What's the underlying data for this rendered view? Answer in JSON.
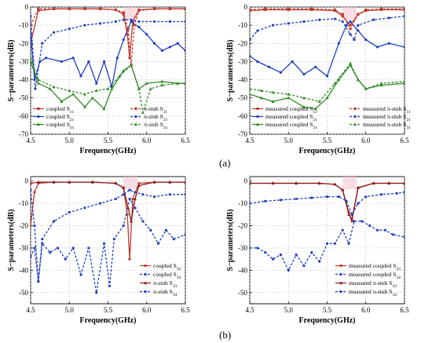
{
  "figure": {
    "label_a": "(a)",
    "label_b": "(b)"
  },
  "chart_data": [
    {
      "type": "line",
      "xlabel": "Frequency(GHz)",
      "ylabel": "S−parameters(dB)",
      "xlim": [
        4.5,
        6.5
      ],
      "ylim": [
        -70,
        0
      ],
      "xticks": [
        "4.5",
        "5.0",
        "5.5",
        "6.0",
        "6.5"
      ],
      "yticks": [
        "0",
        "-10",
        "-20",
        "-30",
        "-40",
        "-50",
        "-60",
        "-70"
      ],
      "legend_left": [
        "coupled S11",
        "coupled S21",
        "coupled S31"
      ],
      "legend_right": [
        "π-stub S11",
        "π-stub S21",
        "π-stub S31"
      ],
      "series": [
        {
          "name": "coupled S11",
          "color": "#c0392b",
          "dash": false,
          "marker": "square",
          "x": [
            4.5,
            4.6,
            4.8,
            5.0,
            5.2,
            5.4,
            5.6,
            5.7,
            5.75,
            5.78,
            5.82,
            5.9,
            6.1,
            6.3,
            6.5
          ],
          "y": [
            -20,
            -2,
            -1,
            -1,
            -1,
            -1,
            -1.5,
            -4,
            -15,
            -28,
            -8,
            -1.5,
            -1,
            -1,
            -1
          ]
        },
        {
          "name": "coupled S21",
          "color": "#1f3fbf",
          "dash": false,
          "marker": "circle",
          "x": [
            4.5,
            4.55,
            4.62,
            4.7,
            4.9,
            5.05,
            5.15,
            5.25,
            5.35,
            5.45,
            5.55,
            5.62,
            5.7,
            5.8,
            5.9,
            6.0,
            6.1,
            6.2,
            6.3,
            6.4,
            6.5
          ],
          "y": [
            -15,
            -40,
            -30,
            -28,
            -30,
            -28,
            -38,
            -30,
            -42,
            -30,
            -44,
            -28,
            -18,
            -8,
            -11,
            -15,
            -20,
            -24,
            -22,
            -20,
            -24
          ]
        },
        {
          "name": "coupled S31",
          "color": "#2e8b22",
          "dash": false,
          "marker": "triangle",
          "x": [
            4.5,
            4.6,
            4.75,
            4.9,
            5.05,
            5.2,
            5.3,
            5.45,
            5.55,
            5.7,
            5.8,
            5.9,
            6.0,
            6.2,
            6.4,
            6.5
          ],
          "y": [
            -30,
            -42,
            -45,
            -52,
            -48,
            -55,
            -50,
            -56,
            -45,
            -35,
            -32,
            -45,
            -42,
            -41,
            -42,
            -42
          ]
        },
        {
          "name": "π-stub S11",
          "color": "#c0392b",
          "dash": true,
          "marker": "square",
          "x": [
            4.5,
            4.6,
            4.8,
            5.0,
            5.2,
            5.4,
            5.6,
            5.7,
            5.76,
            5.8,
            5.84,
            5.9,
            6.1,
            6.3,
            6.5
          ],
          "y": [
            -10,
            -1,
            -1,
            -1,
            -1,
            -1,
            -1.5,
            -3,
            -12,
            -32,
            -10,
            -2,
            -1,
            -1,
            -1
          ]
        },
        {
          "name": "π-stub S21",
          "color": "#1f3fbf",
          "dash": true,
          "marker": "circle",
          "x": [
            4.5,
            4.56,
            4.65,
            4.8,
            5.0,
            5.2,
            5.4,
            5.6,
            5.7,
            5.8,
            5.9,
            6.1,
            6.3,
            6.5
          ],
          "y": [
            -5,
            -45,
            -20,
            -14,
            -12,
            -10,
            -9,
            -8,
            -7,
            -7,
            -8,
            -8,
            -8,
            -8
          ]
        },
        {
          "name": "π-stub S31",
          "color": "#2e8b22",
          "dash": true,
          "marker": "triangle",
          "x": [
            4.5,
            4.6,
            4.8,
            5.0,
            5.2,
            5.35,
            5.5,
            5.65,
            5.8,
            5.9,
            5.95,
            6.05,
            6.2,
            6.4,
            6.5
          ],
          "y": [
            -28,
            -40,
            -44,
            -46,
            -48,
            -46,
            -45,
            -38,
            -32,
            -45,
            -58,
            -45,
            -43,
            -42,
            -42
          ]
        }
      ]
    },
    {
      "type": "line",
      "xlabel": "Frequency(GHz)",
      "ylabel": "S−parameters(dB)",
      "xlim": [
        4.5,
        6.5
      ],
      "ylim": [
        -70,
        0
      ],
      "xticks": [
        "4.5",
        "5.0",
        "5.5",
        "6.0",
        "6.5"
      ],
      "yticks": [
        "0",
        "-10",
        "-20",
        "-30",
        "-40",
        "-50",
        "-60",
        "-70"
      ],
      "legend_left": [
        "measured coupled S11",
        "measured coupled S21",
        "measured coupled S31"
      ],
      "legend_right": [
        "measured π-stub S11",
        "measured π-stub S21",
        "measured π-stub S31"
      ],
      "series": [
        {
          "name": "measured coupled S11",
          "color": "#c0392b",
          "dash": false,
          "marker": "square",
          "x": [
            4.5,
            4.7,
            5.0,
            5.3,
            5.6,
            5.7,
            5.8,
            5.9,
            6.0,
            6.2,
            6.5
          ],
          "y": [
            -2,
            -1.5,
            -1.5,
            -1.5,
            -2,
            -5,
            -10,
            -4,
            -2,
            -1.5,
            -1.5
          ]
        },
        {
          "name": "measured coupled S21",
          "color": "#1f3fbf",
          "dash": false,
          "marker": "circle",
          "x": [
            4.5,
            4.6,
            4.75,
            4.9,
            5.05,
            5.2,
            5.35,
            5.5,
            5.65,
            5.75,
            5.8,
            5.9,
            6.0,
            6.15,
            6.3,
            6.5
          ],
          "y": [
            -27,
            -30,
            -33,
            -36,
            -30,
            -37,
            -33,
            -38,
            -20,
            -10,
            -8,
            -13,
            -18,
            -22,
            -20,
            -22
          ]
        },
        {
          "name": "measured coupled S31",
          "color": "#2e8b22",
          "dash": false,
          "marker": "triangle",
          "x": [
            4.5,
            4.65,
            4.8,
            5.0,
            5.2,
            5.35,
            5.5,
            5.65,
            5.8,
            5.9,
            6.0,
            6.2,
            6.5
          ],
          "y": [
            -48,
            -50,
            -52,
            -50,
            -55,
            -56,
            -50,
            -40,
            -32,
            -40,
            -45,
            -43,
            -42
          ]
        },
        {
          "name": "measured π-stub S11",
          "color": "#c0392b",
          "dash": true,
          "marker": "square",
          "x": [
            4.5,
            4.7,
            5.0,
            5.3,
            5.6,
            5.7,
            5.8,
            5.9,
            6.0,
            6.2,
            6.5
          ],
          "y": [
            -1.5,
            -1,
            -1,
            -1,
            -1.5,
            -4,
            -12,
            -4,
            -1.5,
            -1,
            -1
          ]
        },
        {
          "name": "measured π-stub S21",
          "color": "#1f3fbf",
          "dash": true,
          "marker": "circle",
          "x": [
            4.5,
            4.6,
            4.8,
            5.0,
            5.2,
            5.4,
            5.6,
            5.7,
            5.8,
            5.85,
            5.9,
            6.1,
            6.3,
            6.5
          ],
          "y": [
            -18,
            -13,
            -10,
            -9,
            -8,
            -7,
            -6.5,
            -8,
            -15,
            -18,
            -10,
            -7,
            -6,
            -5
          ]
        },
        {
          "name": "measured π-stub S31",
          "color": "#2e8b22",
          "dash": true,
          "marker": "triangle",
          "x": [
            4.5,
            4.65,
            4.8,
            5.0,
            5.2,
            5.4,
            5.6,
            5.8,
            5.9,
            6.0,
            6.2,
            6.5
          ],
          "y": [
            -45,
            -46,
            -47,
            -48,
            -50,
            -52,
            -42,
            -31,
            -40,
            -45,
            -42,
            -41
          ]
        }
      ]
    },
    {
      "type": "line",
      "xlabel": "Frequency(GHz)",
      "ylabel": "S−parameters(dB)",
      "xlim": [
        4.5,
        6.5
      ],
      "ylim": [
        -55,
        2
      ],
      "xticks": [
        "4.5",
        "5.0",
        "5.5",
        "6.0",
        "6.5"
      ],
      "yticks": [
        "0",
        "-10",
        "-20",
        "-30",
        "-40",
        "-50"
      ],
      "legend": [
        "coupled S33",
        "coupled S34",
        "π-stub S33",
        "π-stub S34"
      ],
      "series": [
        {
          "name": "coupled S33",
          "color": "#c0392b",
          "dash": false,
          "marker": "circle",
          "x": [
            4.5,
            4.55,
            4.6,
            4.8,
            5.0,
            5.3,
            5.6,
            5.7,
            5.75,
            5.78,
            5.82,
            5.9,
            6.1,
            6.3,
            6.5
          ],
          "y": [
            -20,
            -5,
            -1,
            -0.5,
            -0.5,
            -0.5,
            -1,
            -3,
            -15,
            -35,
            -8,
            -1,
            -0.5,
            -0.5,
            -0.5
          ]
        },
        {
          "name": "coupled S34",
          "color": "#1f3fbf",
          "dash": true,
          "marker": "circle",
          "x": [
            4.5,
            4.55,
            4.6,
            4.65,
            4.75,
            4.85,
            4.95,
            5.05,
            5.15,
            5.25,
            5.35,
            5.45,
            5.52,
            5.58,
            5.7,
            5.78,
            5.85,
            5.95,
            6.05,
            6.15,
            6.25,
            6.35,
            6.5
          ],
          "y": [
            -34,
            -30,
            -45,
            -28,
            -32,
            -30,
            -35,
            -30,
            -42,
            -30,
            -50,
            -28,
            -47,
            -26,
            -20,
            -8,
            -12,
            -18,
            -22,
            -28,
            -22,
            -26,
            -24
          ]
        },
        {
          "name": "π-stub S33",
          "color": "#8b1a1a",
          "dash": false,
          "marker": "triangle",
          "x": [
            4.5,
            4.6,
            4.8,
            5.0,
            5.3,
            5.6,
            5.7,
            5.76,
            5.8,
            5.85,
            5.9,
            6.1,
            6.3,
            6.5
          ],
          "y": [
            -1,
            -0.5,
            -0.5,
            -0.5,
            -0.5,
            -1,
            -3,
            -12,
            -18,
            -8,
            -2,
            -0.5,
            -0.5,
            -0.5
          ]
        },
        {
          "name": "π-stub S34",
          "color": "#1f3fbf",
          "dash": true,
          "marker": "circle",
          "x": [
            4.5,
            4.55,
            4.6,
            4.65,
            4.8,
            5.0,
            5.2,
            5.4,
            5.6,
            5.7,
            5.78,
            5.85,
            5.95,
            6.1,
            6.3,
            6.5
          ],
          "y": [
            -4,
            -20,
            -45,
            -26,
            -18,
            -14,
            -12,
            -10,
            -8,
            -6,
            -4,
            -5,
            -6,
            -7,
            -6,
            -6
          ]
        }
      ]
    },
    {
      "type": "line",
      "xlabel": "Frequency(GHz)",
      "ylabel": "S−parameters(dB)",
      "xlim": [
        4.5,
        6.5
      ],
      "ylim": [
        -55,
        2
      ],
      "xticks": [
        "4.5",
        "5.0",
        "5.5",
        "6.0",
        "6.5"
      ],
      "yticks": [
        "0",
        "-10",
        "-20",
        "-30",
        "-40",
        "-50"
      ],
      "legend": [
        "measured coupled S33",
        "measured coupled S34",
        "measured π-stub S33",
        "measured π-stub S34"
      ],
      "series": [
        {
          "name": "measured coupled S33",
          "color": "#c0392b",
          "dash": false,
          "marker": "circle",
          "x": [
            4.5,
            4.8,
            5.1,
            5.4,
            5.6,
            5.7,
            5.78,
            5.82,
            5.9,
            6.1,
            6.3,
            6.5
          ],
          "y": [
            -1,
            -1,
            -1,
            -1,
            -1.5,
            -4,
            -14,
            -18,
            -3,
            -1,
            -1,
            -1
          ]
        },
        {
          "name": "measured coupled S34",
          "color": "#1f3fbf",
          "dash": true,
          "marker": "circle",
          "x": [
            4.5,
            4.6,
            4.7,
            4.8,
            4.9,
            5.0,
            5.1,
            5.2,
            5.3,
            5.4,
            5.5,
            5.6,
            5.7,
            5.78,
            5.85,
            5.95,
            6.05,
            6.15,
            6.25,
            6.35,
            6.5
          ],
          "y": [
            -30,
            -30,
            -32,
            -35,
            -33,
            -40,
            -33,
            -38,
            -32,
            -36,
            -28,
            -28,
            -22,
            -28,
            -18,
            -18,
            -20,
            -22,
            -22,
            -24,
            -25
          ]
        },
        {
          "name": "measured π-stub S33",
          "color": "#8b1a1a",
          "dash": false,
          "marker": "triangle",
          "x": [
            4.5,
            4.8,
            5.1,
            5.4,
            5.6,
            5.7,
            5.78,
            5.82,
            5.9,
            6.1,
            6.3,
            6.5
          ],
          "y": [
            -1,
            -1,
            -1,
            -1,
            -1.5,
            -4,
            -15,
            -17,
            -3,
            -1,
            -1,
            -1
          ]
        },
        {
          "name": "measured π-stub S34",
          "color": "#1f3fbf",
          "dash": true,
          "marker": "circle",
          "x": [
            4.5,
            4.7,
            4.9,
            5.1,
            5.3,
            5.5,
            5.65,
            5.75,
            5.82,
            5.9,
            6.0,
            6.2,
            6.4,
            6.5
          ],
          "y": [
            -10,
            -9,
            -8.5,
            -8,
            -7.5,
            -7,
            -7,
            -9,
            -15,
            -10,
            -7,
            -6,
            -5.5,
            -5
          ]
        }
      ]
    }
  ]
}
